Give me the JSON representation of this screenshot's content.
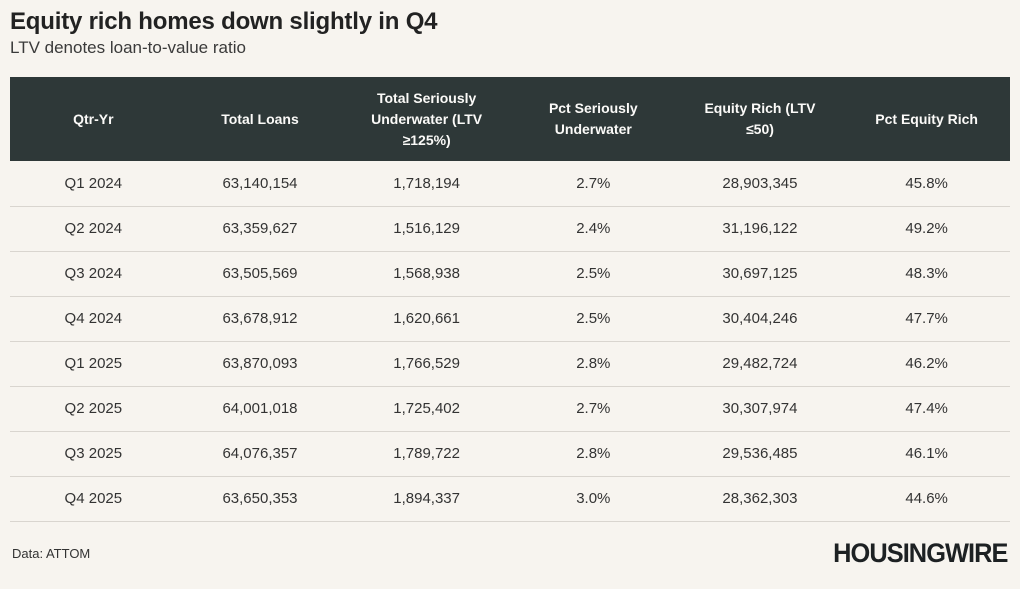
{
  "page": {
    "title": "Equity rich homes down slightly in Q4",
    "subtitle": "LTV denotes loan-to-value ratio",
    "source_note": "Data: ATTOM",
    "brand_logo": "HOUSINGWIRE"
  },
  "colors": {
    "background": "#f7f4ef",
    "header_bg": "#2e3838",
    "header_text": "#fbfaf8",
    "cell_text": "#333333",
    "divider": "#d9d5cf",
    "title_text": "#222222",
    "logo_text": "#1d2123"
  },
  "chart_data": {
    "type": "table",
    "title": "Equity rich homes down slightly in Q4",
    "subtitle": "LTV denotes loan-to-value ratio",
    "source": "Data: ATTOM",
    "columns": [
      "Qtr-Yr",
      "Total Loans",
      "Total Seriously Underwater (LTV ≥125%)",
      "Pct Seriously Underwater",
      "Equity Rich (LTV ≤50)",
      "Pct Equity Rich"
    ],
    "rows": [
      [
        "Q1 2024",
        "63,140,154",
        "1,718,194",
        "2.7%",
        "28,903,345",
        "45.8%"
      ],
      [
        "Q2 2024",
        "63,359,627",
        "1,516,129",
        "2.4%",
        "31,196,122",
        "49.2%"
      ],
      [
        "Q3 2024",
        "63,505,569",
        "1,568,938",
        "2.5%",
        "30,697,125",
        "48.3%"
      ],
      [
        "Q4 2024",
        "63,678,912",
        "1,620,661",
        "2.5%",
        "30,404,246",
        "47.7%"
      ],
      [
        "Q1 2025",
        "63,870,093",
        "1,766,529",
        "2.8%",
        "29,482,724",
        "46.2%"
      ],
      [
        "Q2 2025",
        "64,001,018",
        "1,725,402",
        "2.7%",
        "30,307,974",
        "47.4%"
      ],
      [
        "Q3 2025",
        "64,076,357",
        "1,789,722",
        "2.8%",
        "29,536,485",
        "46.1%"
      ],
      [
        "Q4 2025",
        "63,650,353",
        "1,894,337",
        "3.0%",
        "28,362,303",
        "44.6%"
      ]
    ]
  }
}
